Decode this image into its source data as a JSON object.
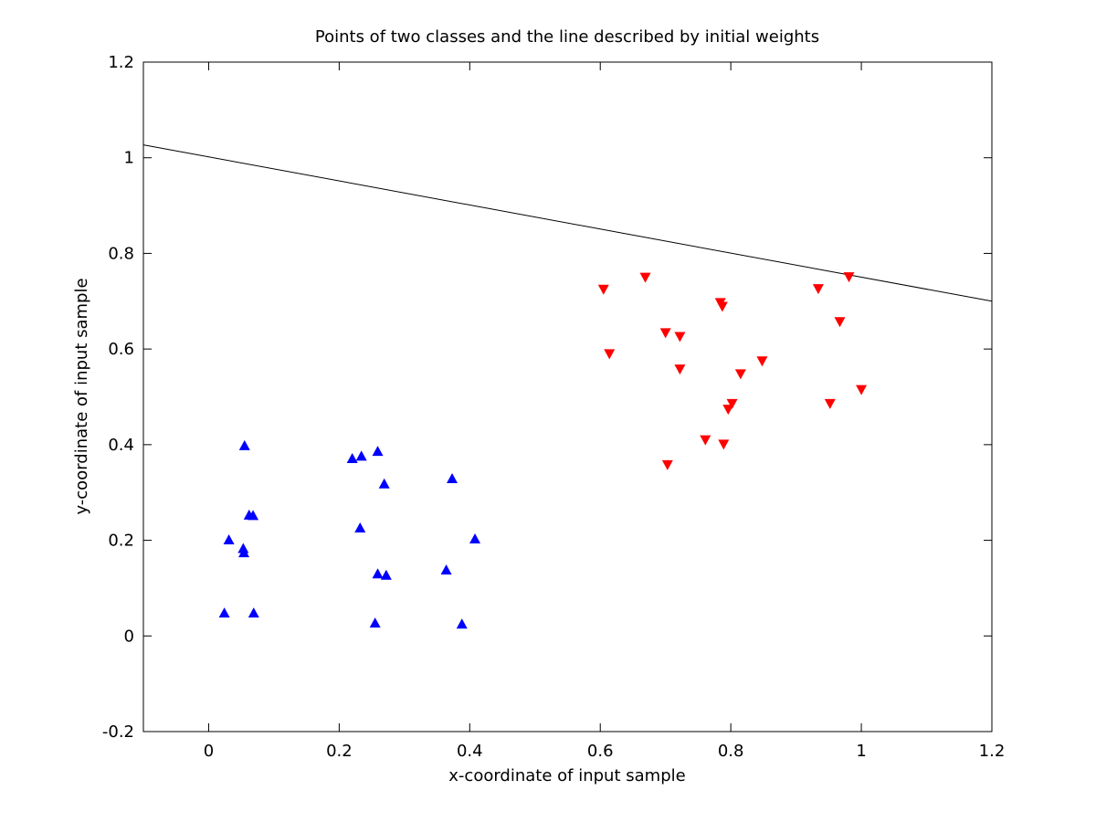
{
  "chart_data": {
    "type": "scatter",
    "title": "Points of two classes and the line described by initial weights",
    "xlabel": "x-coordinate of input sample",
    "ylabel": "y-coordinate of input sample",
    "xlim": [
      -0.1,
      1.2
    ],
    "ylim": [
      -0.2,
      1.2
    ],
    "xticks": [
      "0",
      "0.2",
      "0.4",
      "0.6",
      "0.8",
      "1",
      "1.2"
    ],
    "xtick_values": [
      0,
      0.2,
      0.4,
      0.6,
      0.8,
      1,
      1.2
    ],
    "yticks": [
      "-0.2",
      "0",
      "0.2",
      "0.4",
      "0.6",
      "0.8",
      "1",
      "1.2"
    ],
    "ytick_values": [
      -0.2,
      0,
      0.2,
      0.4,
      0.6,
      0.8,
      1,
      1.2
    ],
    "grid": false,
    "series": [
      {
        "marker": "triangle-up",
        "color": "#0000ff",
        "points": [
          [
            0.055,
            0.398
          ],
          [
            0.062,
            0.253
          ],
          [
            0.068,
            0.252
          ],
          [
            0.031,
            0.201
          ],
          [
            0.053,
            0.183
          ],
          [
            0.054,
            0.174
          ],
          [
            0.024,
            0.048
          ],
          [
            0.069,
            0.048
          ],
          [
            0.22,
            0.371
          ],
          [
            0.234,
            0.376
          ],
          [
            0.259,
            0.386
          ],
          [
            0.269,
            0.318
          ],
          [
            0.232,
            0.226
          ],
          [
            0.259,
            0.13
          ],
          [
            0.272,
            0.127
          ],
          [
            0.255,
            0.027
          ],
          [
            0.373,
            0.329
          ],
          [
            0.408,
            0.203
          ],
          [
            0.364,
            0.138
          ],
          [
            0.388,
            0.025
          ]
        ]
      },
      {
        "marker": "triangle-down",
        "color": "#ff0000",
        "points": [
          [
            0.605,
            0.725
          ],
          [
            0.669,
            0.75
          ],
          [
            0.614,
            0.59
          ],
          [
            0.7,
            0.634
          ],
          [
            0.722,
            0.626
          ],
          [
            0.722,
            0.558
          ],
          [
            0.703,
            0.358
          ],
          [
            0.784,
            0.697
          ],
          [
            0.787,
            0.689
          ],
          [
            0.815,
            0.548
          ],
          [
            0.848,
            0.575
          ],
          [
            0.802,
            0.486
          ],
          [
            0.796,
            0.474
          ],
          [
            0.761,
            0.41
          ],
          [
            0.789,
            0.401
          ],
          [
            0.934,
            0.726
          ],
          [
            0.981,
            0.751
          ],
          [
            0.967,
            0.657
          ],
          [
            0.952,
            0.486
          ],
          [
            1.0,
            0.515
          ]
        ]
      }
    ],
    "line": {
      "color": "#000000",
      "x": [
        -0.1,
        1.2
      ],
      "y": [
        1.027,
        0.7
      ]
    }
  }
}
